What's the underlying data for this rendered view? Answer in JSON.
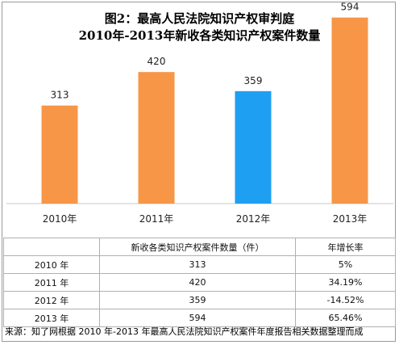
{
  "chart_data": {
    "type": "bar",
    "title": "图2：最高人民法院知识产权审判庭",
    "subtitle": "2010年-2013年新收各类知识产权案件数量",
    "categories": [
      "2010年",
      "2011年",
      "2012年",
      "2013年"
    ],
    "values": [
      313,
      420,
      359,
      594
    ],
    "data_labels": [
      "313",
      "420",
      "359",
      "594"
    ],
    "highlight_index": 2,
    "colors": {
      "default": "#F79646",
      "highlight": "#1E9FF2"
    },
    "ylim": [
      0,
      650
    ],
    "grid": false,
    "legend": "none",
    "xlabel": "",
    "ylabel": ""
  },
  "table": {
    "headers": [
      "",
      "新收各类知识产权案件数量（件）",
      "年增长率"
    ],
    "rows": [
      [
        "2010 年",
        "313",
        "5%"
      ],
      [
        "2011 年",
        "420",
        "34.19%"
      ],
      [
        "2012 年",
        "359",
        "-14.52%"
      ],
      [
        "2013 年",
        "594",
        "65.46%"
      ]
    ]
  },
  "source": "来源：知了网根据 2010 年-2013 年最高人民法院知识产权案件年度报告相关数据整理而成"
}
